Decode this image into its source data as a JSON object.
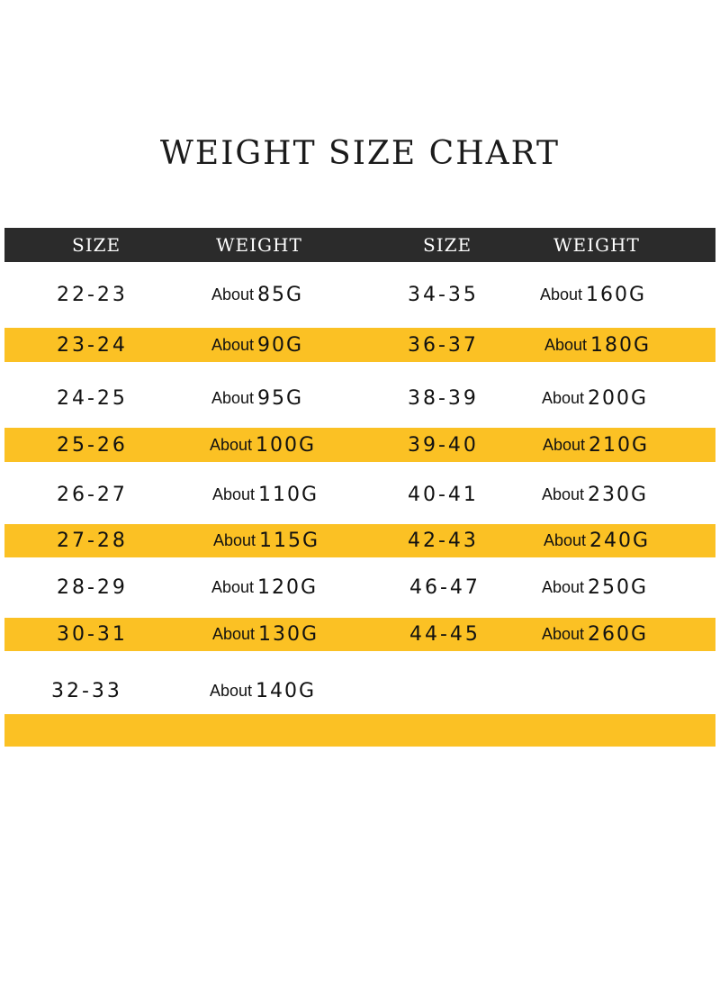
{
  "title": "WEIGHT SIZE CHART",
  "colors": {
    "header_bg": "#2b2b2b",
    "stripe": "#fbc124",
    "background": "#ffffff"
  },
  "headers": [
    "SIZE",
    "WEIGHT",
    "SIZE",
    "WEIGHT"
  ],
  "rows": [
    {
      "left_size": "22-23",
      "left_about": "About",
      "left_weight": "85G",
      "right_size": "34-35",
      "right_about": "About",
      "right_weight": "160G"
    },
    {
      "left_size": "23-24",
      "left_about": "About",
      "left_weight": "90G",
      "right_size": "36-37",
      "right_about": "About",
      "right_weight": "180G"
    },
    {
      "left_size": "24-25",
      "left_about": "About",
      "left_weight": "95G",
      "right_size": "38-39",
      "right_about": "About",
      "right_weight": "200G"
    },
    {
      "left_size": "25-26",
      "left_about": "About",
      "left_weight": "100G",
      "right_size": "39-40",
      "right_about": "About",
      "right_weight": "210G"
    },
    {
      "left_size": "26-27",
      "left_about": "About",
      "left_weight": "110G",
      "right_size": "40-41",
      "right_about": "About",
      "right_weight": "230G"
    },
    {
      "left_size": "27-28",
      "left_about": "About",
      "left_weight": "115G",
      "right_size": "42-43",
      "right_about": "About",
      "right_weight": "240G"
    },
    {
      "left_size": "28-29",
      "left_about": "About",
      "left_weight": "120G",
      "right_size": "46-47",
      "right_about": "About",
      "right_weight": "250G"
    },
    {
      "left_size": "30-31",
      "left_about": "About",
      "left_weight": "130G",
      "right_size": "44-45",
      "right_about": "About",
      "right_weight": "260G"
    },
    {
      "left_size": "32-33",
      "left_about": "About",
      "left_weight": "140G",
      "right_size": "",
      "right_about": "",
      "right_weight": ""
    },
    {
      "left_size": "",
      "left_about": "",
      "left_weight": "",
      "right_size": "",
      "right_about": "",
      "right_weight": ""
    }
  ]
}
